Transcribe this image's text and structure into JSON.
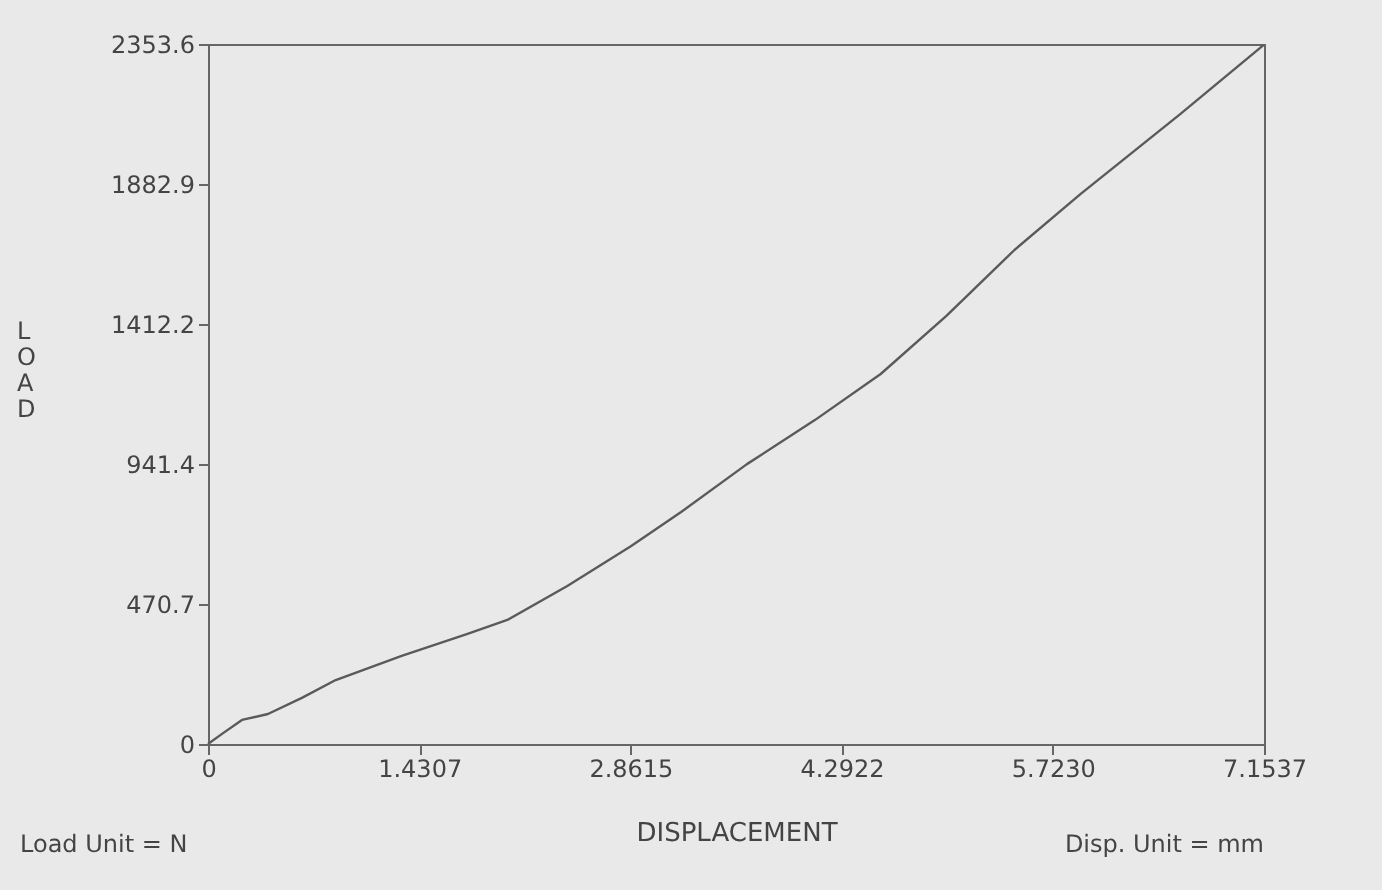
{
  "chart_data": {
    "type": "line",
    "xlabel": "DISPLACEMENT",
    "ylabel": "LOAD",
    "annotations": [
      "Load Unit = N",
      "Disp. Unit = mm"
    ],
    "x": [
      0,
      0.095,
      0.23,
      0.406,
      0.636,
      0.865,
      1.312,
      1.758,
      2.028,
      2.434,
      2.867,
      3.205,
      3.651,
      4.111,
      4.557,
      5.004,
      5.463,
      5.91,
      6.586,
      7.15
    ],
    "series": [
      {
        "color": "#5a5a5a",
        "values": [
          0,
          34,
          81,
          101,
          155,
          215,
          296,
          370,
          417,
          531,
          666,
          780,
          941,
          1089,
          1244,
          1440,
          1661,
          1849,
          2118,
          2350
        ]
      }
    ],
    "xlim": [
      0,
      7.1537
    ],
    "xticks": [
      0,
      1.4307,
      2.8615,
      4.2922,
      {
        "value": 5.723,
        "label": "5.7230"
      },
      7.1537
    ],
    "ylim": [
      0,
      2353.6
    ],
    "yticks": [
      0,
      470.7,
      941.4,
      1412.2,
      1882.9,
      2353.6
    ],
    "grid": false,
    "marker": "none",
    "line_style": "solid"
  }
}
